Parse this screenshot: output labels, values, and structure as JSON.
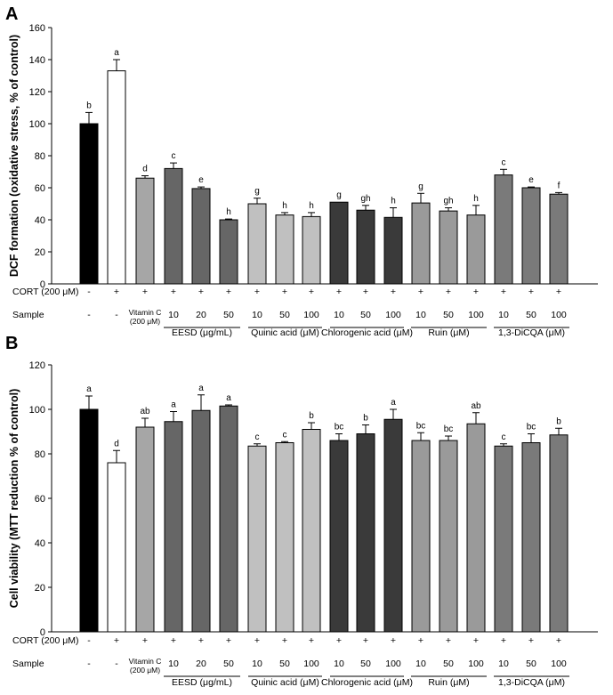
{
  "chart_data": [
    {
      "panel": "A",
      "type": "bar",
      "ylabel": "DCF formation (oxidative stress, % of control)",
      "ylim": [
        0,
        160
      ],
      "yticks": [
        0,
        20,
        40,
        60,
        80,
        100,
        120,
        140,
        160
      ],
      "colors": [
        "#000000",
        "#ffffff",
        "#a6a6a6",
        "#666666",
        "#666666",
        "#666666",
        "#c0c0c0",
        "#c0c0c0",
        "#c0c0c0",
        "#3a3a3a",
        "#3a3a3a",
        "#3a3a3a",
        "#9a9a9a",
        "#9a9a9a",
        "#9a9a9a",
        "#7a7a7a",
        "#7a7a7a",
        "#7a7a7a"
      ],
      "values": [
        100,
        133,
        66,
        72,
        59.5,
        40,
        50,
        43,
        42,
        51,
        46,
        41.5,
        50.5,
        45.5,
        43,
        68,
        60,
        56
      ],
      "errors": [
        7,
        7,
        1.5,
        3.5,
        1,
        0.5,
        3.5,
        1.5,
        2.5,
        0,
        3,
        6,
        6,
        2,
        6,
        3.5,
        0.5,
        1
      ],
      "letters": [
        "b",
        "a",
        "d",
        "c",
        "e",
        "h",
        "g",
        "h",
        "h",
        "g",
        "gh",
        "h",
        "g",
        "gh",
        "h",
        "c",
        "e",
        "f"
      ],
      "cort": [
        "-",
        "+",
        "+",
        "+",
        "+",
        "+",
        "+",
        "+",
        "+",
        "+",
        "+",
        "+",
        "+",
        "+",
        "+",
        "+",
        "+",
        "+"
      ],
      "sample_values": [
        "-",
        "-",
        "",
        "10",
        "20",
        "50",
        "10",
        "50",
        "100",
        "10",
        "50",
        "100",
        "10",
        "50",
        "100",
        "10",
        "50",
        "100"
      ]
    },
    {
      "panel": "B",
      "type": "bar",
      "ylabel": "Cell viability (MTT reduction % of control)",
      "ylim": [
        0,
        120
      ],
      "yticks": [
        0,
        20,
        40,
        60,
        80,
        100,
        120
      ],
      "colors": [
        "#000000",
        "#ffffff",
        "#a6a6a6",
        "#666666",
        "#666666",
        "#666666",
        "#c0c0c0",
        "#c0c0c0",
        "#c0c0c0",
        "#3a3a3a",
        "#3a3a3a",
        "#3a3a3a",
        "#9a9a9a",
        "#9a9a9a",
        "#9a9a9a",
        "#7a7a7a",
        "#7a7a7a",
        "#7a7a7a"
      ],
      "values": [
        100,
        76,
        92,
        94.5,
        99.5,
        101.5,
        83.5,
        85,
        91,
        86,
        89,
        95.5,
        86,
        86,
        93.5,
        83.5,
        85,
        88.5
      ],
      "errors": [
        6,
        5.5,
        4,
        4.5,
        7,
        0.5,
        1,
        0.5,
        3,
        3,
        4,
        4.5,
        3.5,
        2,
        5,
        1,
        4,
        3
      ],
      "letters": [
        "a",
        "d",
        "ab",
        "a",
        "a",
        "a",
        "c",
        "c",
        "b",
        "bc",
        "b",
        "a",
        "bc",
        "bc",
        "ab",
        "c",
        "bc",
        "b"
      ],
      "cort": [
        "-",
        "+",
        "+",
        "+",
        "+",
        "+",
        "+",
        "+",
        "+",
        "+",
        "+",
        "+",
        "+",
        "+",
        "+",
        "+",
        "+",
        "+"
      ],
      "sample_values": [
        "-",
        "-",
        "",
        "10",
        "20",
        "50",
        "10",
        "50",
        "100",
        "10",
        "50",
        "100",
        "10",
        "50",
        "100",
        "10",
        "50",
        "100"
      ]
    }
  ],
  "labels": {
    "cort": "CORT (200 μM)",
    "sample": "Sample",
    "vitc_line1": "Vitamin C",
    "vitc_line2": "(200 μM)",
    "groups": [
      "EESD (μg/mL)",
      "Quinic acid (μM)",
      "Chlorogenic acid (μM)",
      "Ruin (μM)",
      "1,3-DiCQA (μM)"
    ]
  }
}
